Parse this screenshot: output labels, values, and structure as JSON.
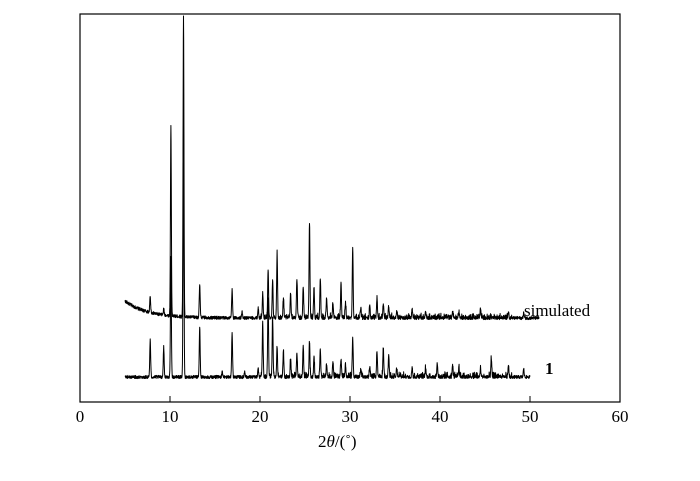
{
  "chart_data": {
    "type": "line",
    "title": "",
    "xlabel_prefix": "2",
    "xlabel_theta": "θ",
    "xlabel_suffix": "/(˚)",
    "ylabel": "",
    "xlim": [
      0,
      60
    ],
    "x_ticks": [
      0,
      10,
      20,
      30,
      40,
      50,
      60
    ],
    "y_ticks_shown": false,
    "grid": false,
    "series": [
      {
        "name": "simulated",
        "x_range": [
          5,
          51
        ],
        "baseline_start": 57,
        "baseline_end": 40,
        "peaks": [
          {
            "x": 7.8,
            "h": 16
          },
          {
            "x": 9.3,
            "h": 6
          },
          {
            "x": 10.1,
            "h": 190
          },
          {
            "x": 11.5,
            "h": 300
          },
          {
            "x": 13.3,
            "h": 33
          },
          {
            "x": 16.9,
            "h": 28
          },
          {
            "x": 18.0,
            "h": 6
          },
          {
            "x": 19.8,
            "h": 10
          },
          {
            "x": 20.3,
            "h": 25
          },
          {
            "x": 20.9,
            "h": 48
          },
          {
            "x": 21.4,
            "h": 38
          },
          {
            "x": 21.9,
            "h": 65
          },
          {
            "x": 22.6,
            "h": 20
          },
          {
            "x": 23.4,
            "h": 25
          },
          {
            "x": 24.1,
            "h": 40
          },
          {
            "x": 24.8,
            "h": 30
          },
          {
            "x": 25.5,
            "h": 95
          },
          {
            "x": 26.0,
            "h": 30
          },
          {
            "x": 26.7,
            "h": 38
          },
          {
            "x": 27.4,
            "h": 20
          },
          {
            "x": 28.1,
            "h": 15
          },
          {
            "x": 29.0,
            "h": 35
          },
          {
            "x": 29.5,
            "h": 15
          },
          {
            "x": 30.3,
            "h": 70
          },
          {
            "x": 31.2,
            "h": 10
          },
          {
            "x": 32.2,
            "h": 12
          },
          {
            "x": 33.0,
            "h": 20
          },
          {
            "x": 33.7,
            "h": 15
          },
          {
            "x": 34.3,
            "h": 12
          },
          {
            "x": 35.2,
            "h": 8
          },
          {
            "x": 36.9,
            "h": 9
          },
          {
            "x": 38.4,
            "h": 6
          },
          {
            "x": 41.4,
            "h": 7
          },
          {
            "x": 42.1,
            "h": 6
          },
          {
            "x": 44.5,
            "h": 9
          },
          {
            "x": 47.6,
            "h": 6
          },
          {
            "x": 49.3,
            "h": 5
          }
        ]
      },
      {
        "name": "1",
        "x_range": [
          5,
          50
        ],
        "baseline_start": 14,
        "baseline_end": 14,
        "peaks": [
          {
            "x": 7.8,
            "h": 37
          },
          {
            "x": 9.3,
            "h": 30
          },
          {
            "x": 10.1,
            "h": 120
          },
          {
            "x": 11.5,
            "h": 250
          },
          {
            "x": 13.3,
            "h": 50
          },
          {
            "x": 15.8,
            "h": 6
          },
          {
            "x": 16.9,
            "h": 45
          },
          {
            "x": 18.3,
            "h": 6
          },
          {
            "x": 19.8,
            "h": 8
          },
          {
            "x": 20.3,
            "h": 55
          },
          {
            "x": 20.9,
            "h": 80
          },
          {
            "x": 21.4,
            "h": 60
          },
          {
            "x": 21.9,
            "h": 30
          },
          {
            "x": 22.6,
            "h": 25
          },
          {
            "x": 23.4,
            "h": 18
          },
          {
            "x": 24.1,
            "h": 25
          },
          {
            "x": 24.8,
            "h": 30
          },
          {
            "x": 25.5,
            "h": 35
          },
          {
            "x": 26.0,
            "h": 20
          },
          {
            "x": 26.7,
            "h": 28
          },
          {
            "x": 27.4,
            "h": 12
          },
          {
            "x": 28.1,
            "h": 15
          },
          {
            "x": 29.0,
            "h": 18
          },
          {
            "x": 29.5,
            "h": 10
          },
          {
            "x": 30.3,
            "h": 40
          },
          {
            "x": 31.2,
            "h": 8
          },
          {
            "x": 32.2,
            "h": 10
          },
          {
            "x": 33.0,
            "h": 26
          },
          {
            "x": 33.7,
            "h": 30
          },
          {
            "x": 34.3,
            "h": 22
          },
          {
            "x": 35.2,
            "h": 8
          },
          {
            "x": 36.9,
            "h": 10
          },
          {
            "x": 38.4,
            "h": 9
          },
          {
            "x": 39.7,
            "h": 14
          },
          {
            "x": 41.4,
            "h": 12
          },
          {
            "x": 42.1,
            "h": 10
          },
          {
            "x": 44.5,
            "h": 8
          },
          {
            "x": 45.7,
            "h": 18
          },
          {
            "x": 47.6,
            "h": 10
          },
          {
            "x": 49.3,
            "h": 8
          }
        ]
      }
    ]
  }
}
